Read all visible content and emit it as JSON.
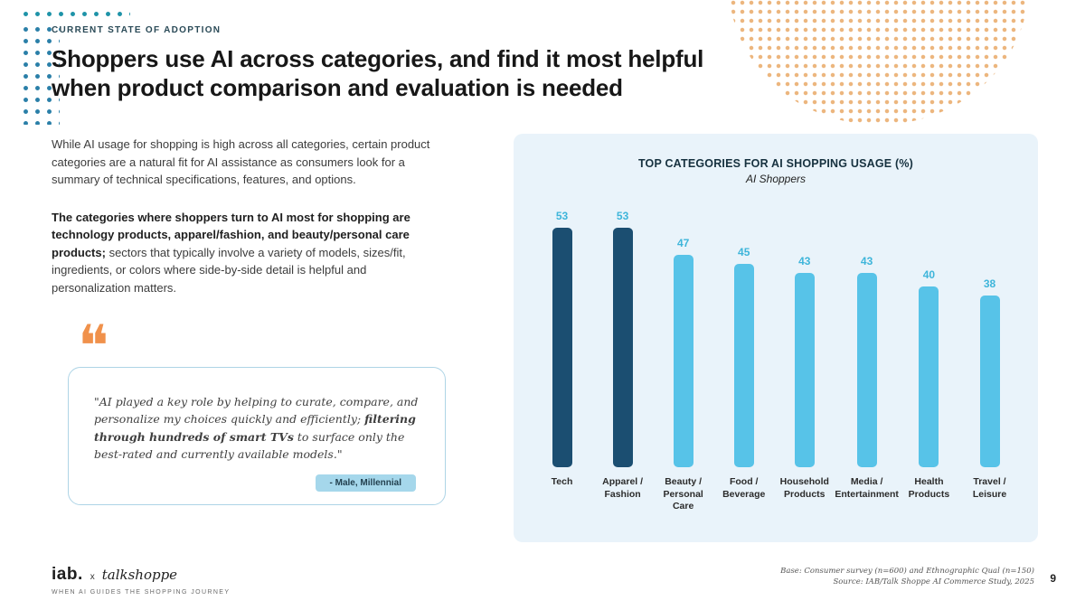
{
  "colors": {
    "navy_bar": "#1b4e71",
    "light_blue_bar": "#57c3e8",
    "value_label_blue": "#3eb5da",
    "accent_orange": "#f0914b",
    "panel_bg": "#e9f3fa",
    "pill_bg": "#a5d7eb"
  },
  "icons": {
    "quote": "❝"
  },
  "header": {
    "eyebrow": "CURRENT STATE OF ADOPTION",
    "title_line1": "Shoppers use AI across categories, and find it most helpful",
    "title_line2": "when product comparison and evaluation is needed"
  },
  "body": {
    "paragraph1": "While AI usage for shopping is high across all categories, certain product categories are a natural fit for AI assistance as consumers look for a summary of technical specifications, features, and options.",
    "paragraph2_bold": "The categories where shoppers turn to AI most for shopping are technology products, apparel/fashion, and beauty/personal care products;",
    "paragraph2_rest": " sectors that typically involve a variety of models, sizes/fit, ingredients, or colors where side-by-side detail is helpful and personalization matters."
  },
  "quote": {
    "text_part1": "\"AI played a key role by helping to curate, compare, and personalize my choices quickly and efficiently; ",
    "text_bold": "filtering through hundreds of smart TVs",
    "text_part2": " to surface only the best-rated and currently available models.\"",
    "attribution": "- Male, Millennial"
  },
  "chart_data": {
    "type": "bar",
    "title": "TOP CATEGORIES FOR AI SHOPPING USAGE (%)",
    "subtitle": "AI Shoppers",
    "categories": [
      "Tech",
      "Apparel / Fashion",
      "Beauty / Personal Care",
      "Food / Beverage",
      "Household Products",
      "Media / Entertainment",
      "Health Products",
      "Travel / Leisure"
    ],
    "values": [
      53,
      53,
      47,
      45,
      43,
      43,
      40,
      38
    ],
    "bar_colors": [
      "#1b4e71",
      "#1b4e71",
      "#57c3e8",
      "#57c3e8",
      "#57c3e8",
      "#57c3e8",
      "#57c3e8",
      "#57c3e8"
    ],
    "value_label_color": "#3eb5da",
    "xlabel": "",
    "ylabel": "",
    "ylim": [
      0,
      53
    ],
    "grid": false,
    "legend": false
  },
  "footer": {
    "logo_iab": "iab.",
    "logo_x": "x",
    "logo_talkshoppe": "talkshoppe",
    "tagline": "WHEN AI GUIDES THE SHOPPING JOURNEY",
    "source_line1": "Base: Consumer survey (n=600) and Ethnographic Qual (n=150)",
    "source_line2": "Source: IAB/Talk Shoppe AI Commerce Study, 2025",
    "page_number": "9"
  }
}
